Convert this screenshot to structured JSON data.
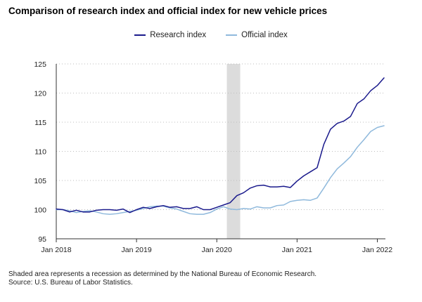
{
  "chart_data": {
    "type": "line",
    "title": "Comparison of research index and official index for new vehicle prices",
    "xlabel": "",
    "ylabel": "",
    "x_tick_labels": [
      "Jan 2018",
      "Jan 2019",
      "Jan 2020",
      "Jan 2021",
      "Jan 2022"
    ],
    "y_ticks": [
      95,
      100,
      105,
      110,
      115,
      120,
      125
    ],
    "ylim": [
      95,
      125
    ],
    "grid": "horizontal-dotted",
    "legend_position": "top-center",
    "recession": {
      "start_month_index": 25.5,
      "end_month_index": 27.5
    },
    "series": [
      {
        "name": "Research index",
        "color": "#1a1a8c",
        "values": [
          100.1,
          100.0,
          99.6,
          99.9,
          99.6,
          99.6,
          99.9,
          100.0,
          100.0,
          99.9,
          100.1,
          99.5,
          100.0,
          100.4,
          100.2,
          100.5,
          100.7,
          100.4,
          100.5,
          100.2,
          100.2,
          100.5,
          100.0,
          100.0,
          100.4,
          100.8,
          101.2,
          102.4,
          102.9,
          103.7,
          104.1,
          104.2,
          103.9,
          103.9,
          104.0,
          103.8,
          104.9,
          105.8,
          106.5,
          107.2,
          111.2,
          113.8,
          114.8,
          115.2,
          116.0,
          118.2,
          119.0,
          120.4,
          121.3,
          122.6
        ]
      },
      {
        "name": "Official index",
        "color": "#8fb9dc",
        "values": [
          100.0,
          100.0,
          99.8,
          99.5,
          99.7,
          99.8,
          99.6,
          99.3,
          99.2,
          99.3,
          99.5,
          99.7,
          99.9,
          100.2,
          100.5,
          100.6,
          100.6,
          100.3,
          100.1,
          99.7,
          99.3,
          99.2,
          99.2,
          99.5,
          100.1,
          100.5,
          100.1,
          100.0,
          100.2,
          100.1,
          100.5,
          100.3,
          100.3,
          100.7,
          100.8,
          101.4,
          101.6,
          101.7,
          101.6,
          102.0,
          103.7,
          105.5,
          107.0,
          108.0,
          109.1,
          110.7,
          112.0,
          113.4,
          114.1,
          114.4
        ]
      }
    ]
  },
  "notes": {
    "recession": "Shaded area represents a recession as determined by the National Bureau of Economic Research.",
    "source": "Source: U.S. Bureau of Labor Statistics."
  }
}
